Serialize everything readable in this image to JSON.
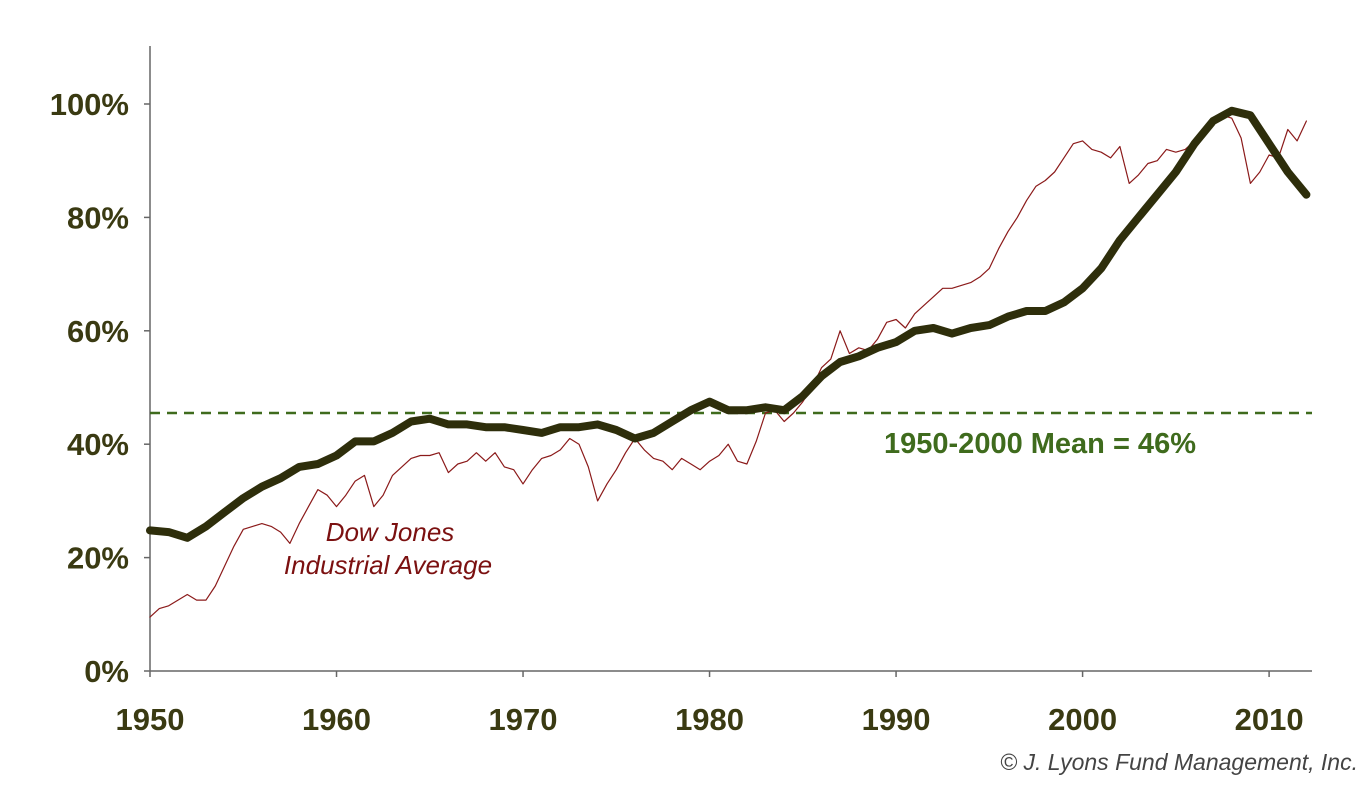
{
  "chart_data": {
    "type": "line",
    "title": "",
    "xlabel": "",
    "ylabel": "",
    "xlim": [
      1950,
      2012.3
    ],
    "ylim": [
      0,
      100
    ],
    "x_ticks": [
      1950,
      1960,
      1970,
      1980,
      1990,
      2000,
      2010
    ],
    "x_tick_labels": [
      "1950",
      "1960",
      "1970",
      "1980",
      "1990",
      "2000",
      "2010"
    ],
    "y_ticks": [
      0,
      20,
      40,
      60,
      80,
      100
    ],
    "y_tick_labels": [
      "0%",
      "20%",
      "40%",
      "60%",
      "80%",
      "100%"
    ],
    "grid": false,
    "legend": "none",
    "reference_line": {
      "value": 45.5,
      "label": "1950-2000 Mean = 46%",
      "color": "#3f6b1d",
      "style": "dashed"
    },
    "series": [
      {
        "name": "",
        "color": "#2e2e0b",
        "style": "thick",
        "points": [
          [
            1950,
            24.8
          ],
          [
            1951,
            24.5
          ],
          [
            1952,
            23.5
          ],
          [
            1953,
            25.5
          ],
          [
            1954,
            28
          ],
          [
            1955,
            30.5
          ],
          [
            1956,
            32.5
          ],
          [
            1957,
            34
          ],
          [
            1958,
            36
          ],
          [
            1959,
            36.5
          ],
          [
            1960,
            38
          ],
          [
            1961,
            40.5
          ],
          [
            1962,
            40.5
          ],
          [
            1963,
            42
          ],
          [
            1964,
            44
          ],
          [
            1965,
            44.5
          ],
          [
            1966,
            43.5
          ],
          [
            1967,
            43.5
          ],
          [
            1968,
            43
          ],
          [
            1969,
            43
          ],
          [
            1970,
            42.5
          ],
          [
            1971,
            42
          ],
          [
            1972,
            43
          ],
          [
            1973,
            43
          ],
          [
            1974,
            43.5
          ],
          [
            1975,
            42.5
          ],
          [
            1976,
            41
          ],
          [
            1977,
            42
          ],
          [
            1978,
            44
          ],
          [
            1979,
            46
          ],
          [
            1980,
            47.5
          ],
          [
            1981,
            46
          ],
          [
            1982,
            46
          ],
          [
            1983,
            46.5
          ],
          [
            1984,
            46
          ],
          [
            1985,
            48.5
          ],
          [
            1986,
            52
          ],
          [
            1987,
            54.5
          ],
          [
            1988,
            55.5
          ],
          [
            1989,
            57
          ],
          [
            1990,
            58
          ],
          [
            1991,
            60
          ],
          [
            1992,
            60.5
          ],
          [
            1993,
            59.5
          ],
          [
            1994,
            60.5
          ],
          [
            1995,
            61
          ],
          [
            1996,
            62.5
          ],
          [
            1997,
            63.5
          ],
          [
            1998,
            63.5
          ],
          [
            1999,
            65
          ],
          [
            2000,
            67.5
          ],
          [
            2001,
            71
          ],
          [
            2002,
            76
          ],
          [
            2003,
            80
          ],
          [
            2004,
            84
          ],
          [
            2005,
            88
          ],
          [
            2006,
            93
          ],
          [
            2007,
            97
          ],
          [
            2008,
            98.8
          ],
          [
            2009,
            98
          ],
          [
            2010,
            93
          ],
          [
            2011,
            88
          ],
          [
            2012,
            84
          ]
        ]
      },
      {
        "name": "Dow Jones Industrial Average",
        "label_lines": [
          "Dow Jones",
          "Industrial Average"
        ],
        "color": "#8b1a1a",
        "style": "thin",
        "points": [
          [
            1950,
            9.5
          ],
          [
            1950.5,
            11
          ],
          [
            1951,
            11.5
          ],
          [
            1951.5,
            12.5
          ],
          [
            1952,
            13.5
          ],
          [
            1952.5,
            12.5
          ],
          [
            1953,
            12.5
          ],
          [
            1953.5,
            15
          ],
          [
            1954,
            18.5
          ],
          [
            1954.5,
            22
          ],
          [
            1955,
            25
          ],
          [
            1955.5,
            25.5
          ],
          [
            1956,
            26
          ],
          [
            1956.5,
            25.5
          ],
          [
            1957,
            24.5
          ],
          [
            1957.5,
            22.5
          ],
          [
            1958,
            26
          ],
          [
            1958.5,
            29
          ],
          [
            1959,
            32
          ],
          [
            1959.5,
            31
          ],
          [
            1960,
            29
          ],
          [
            1960.5,
            31
          ],
          [
            1961,
            33.5
          ],
          [
            1961.5,
            34.5
          ],
          [
            1962,
            29
          ],
          [
            1962.5,
            31
          ],
          [
            1963,
            34.5
          ],
          [
            1963.5,
            36
          ],
          [
            1964,
            37.5
          ],
          [
            1964.5,
            38
          ],
          [
            1965,
            38
          ],
          [
            1965.5,
            38.5
          ],
          [
            1966,
            35
          ],
          [
            1966.5,
            36.5
          ],
          [
            1967,
            37
          ],
          [
            1967.5,
            38.5
          ],
          [
            1968,
            37
          ],
          [
            1968.5,
            38.5
          ],
          [
            1969,
            36
          ],
          [
            1969.5,
            35.5
          ],
          [
            1970,
            33
          ],
          [
            1970.5,
            35.5
          ],
          [
            1971,
            37.5
          ],
          [
            1971.5,
            38
          ],
          [
            1972,
            39
          ],
          [
            1972.5,
            41
          ],
          [
            1973,
            40
          ],
          [
            1973.5,
            36
          ],
          [
            1974,
            30
          ],
          [
            1974.5,
            33
          ],
          [
            1975,
            35.5
          ],
          [
            1975.5,
            38.5
          ],
          [
            1976,
            41
          ],
          [
            1976.5,
            39
          ],
          [
            1977,
            37.5
          ],
          [
            1977.5,
            37
          ],
          [
            1978,
            35.5
          ],
          [
            1978.5,
            37.5
          ],
          [
            1979,
            36.5
          ],
          [
            1979.5,
            35.5
          ],
          [
            1980,
            37
          ],
          [
            1980.5,
            38
          ],
          [
            1981,
            40
          ],
          [
            1981.5,
            37
          ],
          [
            1982,
            36.5
          ],
          [
            1982.5,
            40.5
          ],
          [
            1983,
            45.5
          ],
          [
            1983.5,
            46
          ],
          [
            1984,
            44
          ],
          [
            1984.5,
            45.5
          ],
          [
            1985,
            47.5
          ],
          [
            1985.5,
            50
          ],
          [
            1986,
            53.5
          ],
          [
            1986.5,
            55
          ],
          [
            1987,
            60
          ],
          [
            1987.5,
            56
          ],
          [
            1988,
            57
          ],
          [
            1988.5,
            56.5
          ],
          [
            1989,
            58.5
          ],
          [
            1989.5,
            61.5
          ],
          [
            1990,
            62
          ],
          [
            1990.5,
            60.5
          ],
          [
            1991,
            63
          ],
          [
            1991.5,
            64.5
          ],
          [
            1992,
            66
          ],
          [
            1992.5,
            67.5
          ],
          [
            1993,
            67.5
          ],
          [
            1993.5,
            68
          ],
          [
            1994,
            68.5
          ],
          [
            1994.5,
            69.5
          ],
          [
            1995,
            71
          ],
          [
            1995.5,
            74.5
          ],
          [
            1996,
            77.5
          ],
          [
            1996.5,
            80
          ],
          [
            1997,
            83
          ],
          [
            1997.5,
            85.5
          ],
          [
            1998,
            86.5
          ],
          [
            1998.5,
            88
          ],
          [
            1999,
            90.5
          ],
          [
            1999.5,
            93
          ],
          [
            2000,
            93.5
          ],
          [
            2000.5,
            92
          ],
          [
            2001,
            91.5
          ],
          [
            2001.5,
            90.5
          ],
          [
            2002,
            92.5
          ],
          [
            2002.5,
            86
          ],
          [
            2003,
            87.5
          ],
          [
            2003.5,
            89.5
          ],
          [
            2004,
            90
          ],
          [
            2004.5,
            92
          ],
          [
            2005,
            91.5
          ],
          [
            2005.5,
            92
          ],
          [
            2006,
            93.5
          ],
          [
            2006.5,
            95
          ],
          [
            2007,
            97
          ],
          [
            2007.5,
            98
          ],
          [
            2008,
            97.5
          ],
          [
            2008.5,
            94
          ],
          [
            2009,
            86
          ],
          [
            2009.5,
            88
          ],
          [
            2010,
            91
          ],
          [
            2010.5,
            90.5
          ],
          [
            2011,
            95.5
          ],
          [
            2011.5,
            93.5
          ],
          [
            2012,
            97
          ]
        ]
      }
    ],
    "annotations": {
      "copyright": "© J. Lyons Fund Management, Inc."
    }
  }
}
